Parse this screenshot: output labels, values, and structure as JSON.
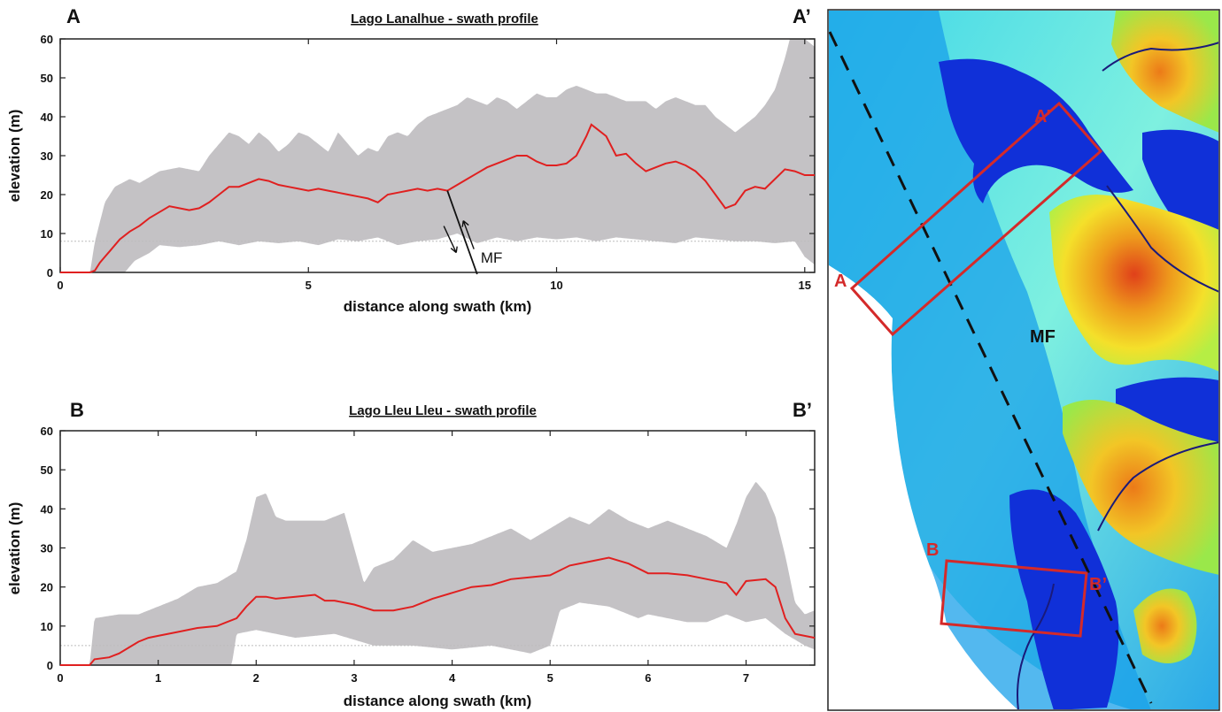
{
  "colors": {
    "median_line": "#e02020",
    "envelope": "#c4c2c5",
    "swath_box": "#d42a2a",
    "fault_line": "#111111",
    "river": "#1a1a7a"
  },
  "chart_data": [
    {
      "type": "area",
      "panel_label": "A",
      "panel_label_end": "A’",
      "title": "Lago Lanalhue - swath profile",
      "xlabel": "distance along swath (km)",
      "ylabel": "elevation (m)",
      "xlim": [
        0,
        15.2
      ],
      "ylim": [
        0,
        60
      ],
      "xticks": [
        0,
        5,
        10,
        15
      ],
      "yticks": [
        0,
        10,
        20,
        30,
        40,
        50,
        60
      ],
      "grid": false,
      "annotations": [
        {
          "text": "MF",
          "x": 8.4,
          "y": 3
        }
      ],
      "fault": {
        "x_top": 7.8,
        "y_top": 21,
        "x_bottom": 8.4,
        "y_bottom": -1
      },
      "series": [
        {
          "role": "median",
          "x": [
            0,
            0.6,
            0.7,
            0.8,
            0.9,
            1.0,
            1.1,
            1.2,
            1.4,
            1.6,
            1.8,
            2.0,
            2.2,
            2.4,
            2.6,
            2.8,
            3.0,
            3.2,
            3.4,
            3.6,
            3.8,
            4.0,
            4.2,
            4.4,
            4.6,
            4.8,
            5.0,
            5.2,
            5.4,
            5.6,
            5.8,
            6.0,
            6.2,
            6.4,
            6.6,
            6.8,
            7.0,
            7.2,
            7.4,
            7.6,
            7.8,
            8.0,
            8.2,
            8.4,
            8.6,
            8.8,
            9.0,
            9.2,
            9.4,
            9.6,
            9.8,
            10.0,
            10.2,
            10.4,
            10.6,
            10.7,
            10.8,
            11.0,
            11.2,
            11.4,
            11.6,
            11.8,
            12.0,
            12.2,
            12.4,
            12.6,
            12.8,
            13.0,
            13.2,
            13.4,
            13.6,
            13.8,
            14.0,
            14.2,
            14.4,
            14.6,
            14.8,
            15.0,
            15.2
          ],
          "y": [
            0,
            0,
            0.5,
            2.5,
            4,
            5.5,
            7,
            8.5,
            10.5,
            12,
            14,
            15.5,
            17,
            16.5,
            16,
            16.5,
            18,
            20,
            22,
            22,
            23,
            24,
            23.5,
            22.5,
            22,
            21.5,
            21,
            21.5,
            21,
            20.5,
            20,
            19.5,
            19,
            18,
            20,
            20.5,
            21,
            21.5,
            21,
            21.5,
            21,
            22.5,
            24,
            25.5,
            27,
            28,
            29,
            30,
            30,
            28.5,
            27.5,
            27.5,
            28,
            30,
            35,
            38,
            37,
            35,
            30,
            30.5,
            28,
            26,
            27,
            28,
            28.5,
            27.5,
            26,
            23.5,
            20,
            16.5,
            17.5,
            21,
            22,
            21.5,
            24,
            26.5,
            26,
            25,
            25
          ]
        },
        {
          "role": "max",
          "x": [
            0,
            0.6,
            0.7,
            0.9,
            1.1,
            1.4,
            1.6,
            2.0,
            2.4,
            2.8,
            3.0,
            3.2,
            3.4,
            3.6,
            3.8,
            4.0,
            4.2,
            4.4,
            4.6,
            4.8,
            5.0,
            5.2,
            5.4,
            5.6,
            5.8,
            6.0,
            6.2,
            6.4,
            6.6,
            6.8,
            7.0,
            7.2,
            7.4,
            7.6,
            7.8,
            8.0,
            8.2,
            8.4,
            8.6,
            8.8,
            9.0,
            9.2,
            9.4,
            9.6,
            9.8,
            10.0,
            10.2,
            10.4,
            10.6,
            10.8,
            11.0,
            11.2,
            11.4,
            11.6,
            11.8,
            12.0,
            12.2,
            12.4,
            12.6,
            12.8,
            13.0,
            13.2,
            13.4,
            13.6,
            13.8,
            14.0,
            14.2,
            14.4,
            14.6,
            14.8,
            15.0,
            15.2
          ],
          "y": [
            0,
            0,
            8,
            18,
            22,
            24,
            23,
            26,
            27,
            26,
            30,
            33,
            36,
            35,
            33,
            36,
            34,
            31,
            33,
            36,
            35,
            33,
            31,
            36,
            33,
            30,
            32,
            31,
            35,
            36,
            35,
            38,
            40,
            41,
            42,
            43,
            45,
            44,
            43,
            45,
            44,
            42,
            44,
            46,
            45,
            45,
            47,
            48,
            47,
            46,
            46,
            45,
            44,
            44,
            44,
            42,
            44,
            45,
            44,
            43,
            43,
            40,
            38,
            36,
            38,
            40,
            43,
            47,
            55,
            65,
            60,
            58
          ]
        },
        {
          "role": "min",
          "x": [
            0,
            0.6,
            0.7,
            0.9,
            1.1,
            1.3,
            1.5,
            1.8,
            2.0,
            2.4,
            2.8,
            3.2,
            3.6,
            4.0,
            4.4,
            4.8,
            5.2,
            5.6,
            6.0,
            6.4,
            6.8,
            7.2,
            7.6,
            8.0,
            8.4,
            8.8,
            9.2,
            9.6,
            10.0,
            10.4,
            10.8,
            11.2,
            11.6,
            12.0,
            12.4,
            12.8,
            13.2,
            13.6,
            14.0,
            14.4,
            14.8,
            15.0,
            15.2
          ],
          "y": [
            0,
            0,
            0,
            0,
            0,
            0,
            3,
            5,
            7,
            6.5,
            7,
            8,
            7,
            8,
            7.5,
            8,
            7,
            8.5,
            8,
            9,
            7,
            8,
            8.5,
            10,
            7.5,
            9,
            8,
            9,
            8.5,
            9,
            8,
            9,
            8.5,
            8,
            7.5,
            9,
            8.5,
            8,
            8,
            7.5,
            8,
            4,
            2
          ]
        }
      ]
    },
    {
      "type": "area",
      "panel_label": "B",
      "panel_label_end": "B’",
      "title": "Lago Lleu Lleu - swath profile",
      "xlabel": "distance along swath (km)",
      "ylabel": "elevation (m)",
      "xlim": [
        0,
        7.7
      ],
      "ylim": [
        0,
        60
      ],
      "xticks": [
        0,
        1,
        2,
        3,
        4,
        5,
        6,
        7
      ],
      "yticks": [
        0,
        10,
        20,
        30,
        40,
        50,
        60
      ],
      "grid": false,
      "series": [
        {
          "role": "median",
          "x": [
            0,
            0.3,
            0.35,
            0.5,
            0.6,
            0.7,
            0.8,
            0.9,
            1.0,
            1.2,
            1.4,
            1.6,
            1.8,
            1.9,
            2.0,
            2.1,
            2.2,
            2.4,
            2.6,
            2.7,
            2.8,
            3.0,
            3.2,
            3.4,
            3.6,
            3.8,
            4.0,
            4.2,
            4.4,
            4.6,
            4.8,
            5.0,
            5.2,
            5.4,
            5.6,
            5.8,
            6.0,
            6.2,
            6.4,
            6.6,
            6.8,
            6.9,
            7.0,
            7.2,
            7.3,
            7.4,
            7.5,
            7.7
          ],
          "y": [
            0,
            0,
            1.5,
            2,
            3,
            4.5,
            6,
            7,
            7.5,
            8.5,
            9.5,
            10,
            12,
            15,
            17.5,
            17.5,
            17,
            17.5,
            18,
            16.5,
            16.5,
            15.5,
            14,
            14,
            15,
            17,
            18.5,
            20,
            20.5,
            22,
            22.5,
            23,
            25.5,
            26.5,
            27.5,
            26,
            23.5,
            23.5,
            23,
            22,
            21,
            18,
            21.5,
            22,
            20,
            12,
            8,
            7
          ]
        },
        {
          "role": "max",
          "x": [
            0,
            0.3,
            0.35,
            0.6,
            0.8,
            1.0,
            1.2,
            1.4,
            1.6,
            1.8,
            1.9,
            2.0,
            2.1,
            2.2,
            2.3,
            2.5,
            2.7,
            2.9,
            3.0,
            3.1,
            3.2,
            3.4,
            3.6,
            3.8,
            4.0,
            4.2,
            4.4,
            4.6,
            4.8,
            5.0,
            5.2,
            5.4,
            5.6,
            5.8,
            6.0,
            6.2,
            6.4,
            6.6,
            6.8,
            6.9,
            7.0,
            7.1,
            7.2,
            7.3,
            7.4,
            7.5,
            7.6,
            7.7
          ],
          "y": [
            0,
            0,
            12,
            13,
            13,
            15,
            17,
            20,
            21,
            24,
            32,
            43,
            44,
            38,
            37,
            37,
            37,
            39,
            30,
            21,
            25,
            27,
            32,
            29,
            30,
            31,
            33,
            35,
            32,
            35,
            38,
            36,
            40,
            37,
            35,
            37,
            35,
            33,
            30,
            36,
            43,
            47,
            44,
            38,
            28,
            16,
            13,
            14
          ]
        },
        {
          "role": "min",
          "x": [
            0,
            0.3,
            0.35,
            0.8,
            1.2,
            1.6,
            1.75,
            1.8,
            2.0,
            2.4,
            2.8,
            3.2,
            3.6,
            4.0,
            4.4,
            4.8,
            5.0,
            5.1,
            5.3,
            5.6,
            5.9,
            6.0,
            6.2,
            6.4,
            6.6,
            6.8,
            7.0,
            7.2,
            7.4,
            7.6,
            7.7
          ],
          "y": [
            0,
            0,
            0,
            0,
            0,
            0,
            0,
            8,
            9,
            7,
            8,
            5,
            5,
            4,
            5,
            3,
            5,
            14,
            16,
            15,
            12,
            13,
            12,
            11,
            11,
            13,
            11,
            12,
            8,
            5,
            4
          ]
        }
      ]
    }
  ],
  "map": {
    "labels": [
      "A’",
      "A",
      "B",
      "B’",
      "MF"
    ]
  }
}
